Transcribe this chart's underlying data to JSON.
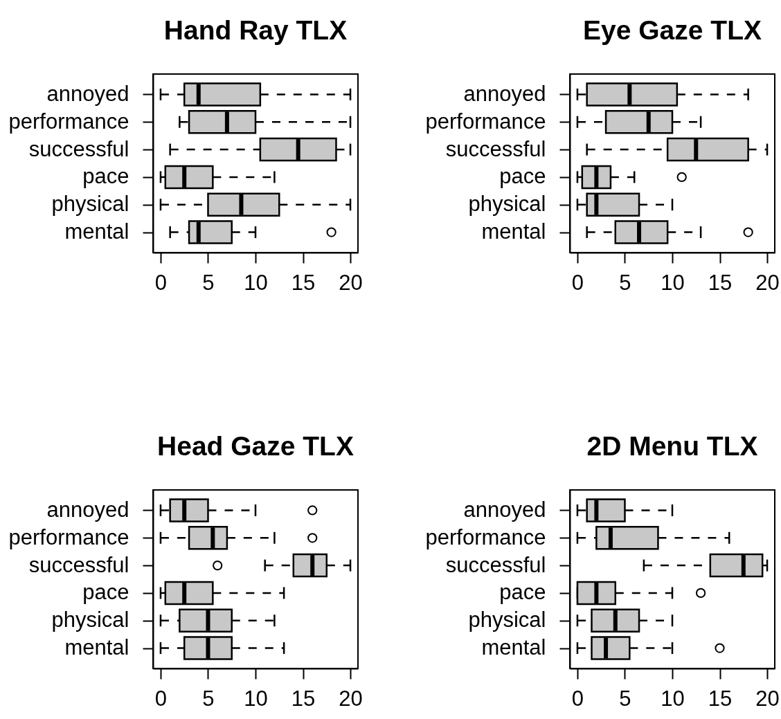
{
  "chart_data": [
    {
      "type": "box",
      "title": "Hand Ray TLX",
      "orientation": "horizontal",
      "categories": [
        "annoyed",
        "performance",
        "successful",
        "pace",
        "physical",
        "mental"
      ],
      "color": "#c8c8c8",
      "line_style": "dashed",
      "marker": "circle",
      "xlim": [
        -0.8,
        20.8
      ],
      "xticks": [
        0,
        5,
        10,
        15,
        20
      ],
      "boxes": [
        {
          "low": 0,
          "q1": 2.5,
          "median": 4,
          "q3": 10.5,
          "high": 20
        },
        {
          "low": 2,
          "q1": 3,
          "median": 7,
          "q3": 10,
          "high": 20
        },
        {
          "low": 1,
          "q1": 10.5,
          "median": 14.5,
          "q3": 18.5,
          "high": 20
        },
        {
          "low": 0,
          "q1": 0.5,
          "median": 2.5,
          "q3": 5.5,
          "high": 12
        },
        {
          "low": 0,
          "q1": 5,
          "median": 8.5,
          "q3": 12.5,
          "high": 20
        },
        {
          "low": 1,
          "q1": 3,
          "median": 4,
          "q3": 7.5,
          "high": 10,
          "outliers": [
            18
          ]
        }
      ]
    },
    {
      "type": "box",
      "title": "Eye Gaze TLX",
      "orientation": "horizontal",
      "categories": [
        "annoyed",
        "performance",
        "successful",
        "pace",
        "physical",
        "mental"
      ],
      "color": "#c8c8c8",
      "line_style": "dashed",
      "marker": "circle",
      "xlim": [
        -0.8,
        20.8
      ],
      "xticks": [
        0,
        5,
        10,
        15,
        20
      ],
      "boxes": [
        {
          "low": 0,
          "q1": 1,
          "median": 5.5,
          "q3": 10.5,
          "high": 18
        },
        {
          "low": 0,
          "q1": 3,
          "median": 7.5,
          "q3": 10,
          "high": 13
        },
        {
          "low": 1,
          "q1": 9.5,
          "median": 12.5,
          "q3": 18,
          "high": 20
        },
        {
          "low": 0,
          "q1": 0.5,
          "median": 2,
          "q3": 3.5,
          "high": 6,
          "outliers": [
            11
          ]
        },
        {
          "low": 0,
          "q1": 1,
          "median": 2,
          "q3": 6.5,
          "high": 10
        },
        {
          "low": 1,
          "q1": 4,
          "median": 6.5,
          "q3": 9.5,
          "high": 13,
          "outliers": [
            18
          ]
        }
      ]
    },
    {
      "type": "box",
      "title": "Head Gaze TLX",
      "orientation": "horizontal",
      "categories": [
        "annoyed",
        "performance",
        "successful",
        "pace",
        "physical",
        "mental"
      ],
      "color": "#c8c8c8",
      "line_style": "dashed",
      "marker": "circle",
      "xlim": [
        -0.8,
        20.8
      ],
      "xticks": [
        0,
        5,
        10,
        15,
        20
      ],
      "boxes": [
        {
          "low": 0,
          "q1": 1,
          "median": 2.5,
          "q3": 5,
          "high": 10,
          "outliers": [
            16
          ]
        },
        {
          "low": 0,
          "q1": 3,
          "median": 5.5,
          "q3": 7,
          "high": 12,
          "outliers": [
            16
          ]
        },
        {
          "low": 11,
          "q1": 14,
          "median": 16,
          "q3": 17.5,
          "high": 20,
          "outliers": [
            6
          ]
        },
        {
          "low": 0,
          "q1": 0.5,
          "median": 2.5,
          "q3": 5.5,
          "high": 13
        },
        {
          "low": 0,
          "q1": 2,
          "median": 5,
          "q3": 7.5,
          "high": 12
        },
        {
          "low": 0,
          "q1": 2.5,
          "median": 5,
          "q3": 7.5,
          "high": 13
        }
      ]
    },
    {
      "type": "box",
      "title": "2D Menu TLX",
      "orientation": "horizontal",
      "categories": [
        "annoyed",
        "performance",
        "successful",
        "pace",
        "physical",
        "mental"
      ],
      "color": "#c8c8c8",
      "line_style": "dashed",
      "marker": "circle",
      "xlim": [
        -0.8,
        20.8
      ],
      "xticks": [
        0,
        5,
        10,
        15,
        20
      ],
      "boxes": [
        {
          "low": 0,
          "q1": 1,
          "median": 2,
          "q3": 5,
          "high": 10
        },
        {
          "low": 0,
          "q1": 2,
          "median": 3.5,
          "q3": 8.5,
          "high": 16
        },
        {
          "low": 7,
          "q1": 14,
          "median": 17.5,
          "q3": 19.5,
          "high": 20
        },
        {
          "low": 0,
          "q1": 0,
          "median": 2,
          "q3": 4,
          "high": 10,
          "outliers": [
            13
          ]
        },
        {
          "low": 0,
          "q1": 1.5,
          "median": 4,
          "q3": 6.5,
          "high": 10
        },
        {
          "low": 0,
          "q1": 1.5,
          "median": 3,
          "q3": 5.5,
          "high": 10,
          "outliers": [
            15
          ]
        }
      ]
    }
  ]
}
